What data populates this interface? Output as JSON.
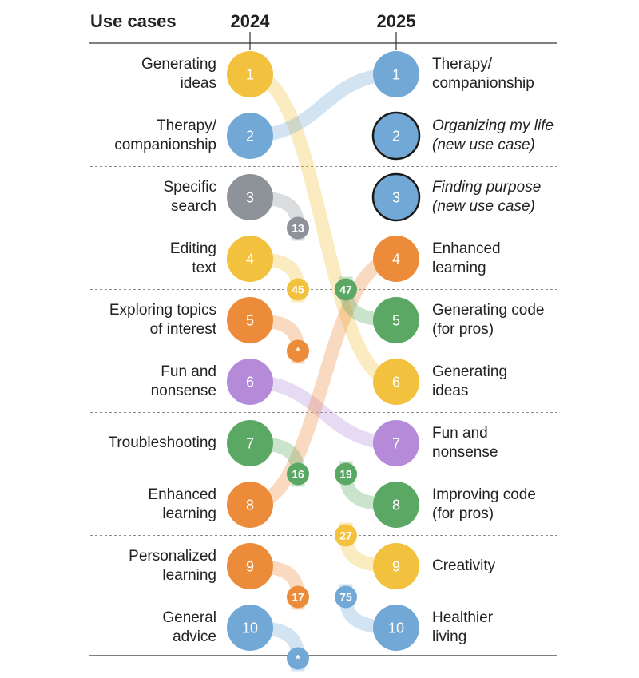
{
  "header": {
    "use_cases_label": "Use cases",
    "year_left": "2024",
    "year_right": "2025"
  },
  "colors": {
    "yellow": "#f2c13e",
    "blue": "#72a8d5",
    "gray": "#8e9399",
    "orange": "#ec8c3a",
    "green": "#5aa864",
    "purple": "#b58bd9"
  },
  "left": [
    {
      "rank": "1",
      "lines": [
        "Generating",
        "ideas"
      ],
      "color": "yellow"
    },
    {
      "rank": "2",
      "lines": [
        "Therapy/",
        "companionship"
      ],
      "color": "blue"
    },
    {
      "rank": "3",
      "lines": [
        "Specific",
        "search"
      ],
      "color": "gray"
    },
    {
      "rank": "4",
      "lines": [
        "Editing",
        "text"
      ],
      "color": "yellow"
    },
    {
      "rank": "5",
      "lines": [
        "Exploring topics",
        "of interest"
      ],
      "color": "orange"
    },
    {
      "rank": "6",
      "lines": [
        "Fun and",
        "nonsense"
      ],
      "color": "purple"
    },
    {
      "rank": "7",
      "lines": [
        "Troubleshooting"
      ],
      "color": "green"
    },
    {
      "rank": "8",
      "lines": [
        "Enhanced",
        "learning"
      ],
      "color": "orange"
    },
    {
      "rank": "9",
      "lines": [
        "Personalized",
        "learning"
      ],
      "color": "orange"
    },
    {
      "rank": "10",
      "lines": [
        "General",
        "advice"
      ],
      "color": "blue"
    }
  ],
  "right": [
    {
      "rank": "1",
      "lines": [
        "Therapy/",
        "companionship"
      ],
      "color": "blue",
      "new": false
    },
    {
      "rank": "2",
      "lines": [
        "Organizing my life",
        "(new use case)"
      ],
      "color": "blue",
      "new": true
    },
    {
      "rank": "3",
      "lines": [
        "Finding purpose",
        "(new use case)"
      ],
      "color": "blue",
      "new": true
    },
    {
      "rank": "4",
      "lines": [
        "Enhanced",
        "learning"
      ],
      "color": "orange",
      "new": false
    },
    {
      "rank": "5",
      "lines": [
        "Generating code",
        "(for pros)"
      ],
      "color": "green",
      "new": false
    },
    {
      "rank": "6",
      "lines": [
        "Generating",
        "ideas"
      ],
      "color": "yellow",
      "new": false
    },
    {
      "rank": "7",
      "lines": [
        "Fun and",
        "nonsense"
      ],
      "color": "purple",
      "new": false
    },
    {
      "rank": "8",
      "lines": [
        "Improving code",
        "(for pros)"
      ],
      "color": "green",
      "new": false
    },
    {
      "rank": "9",
      "lines": [
        "Creativity"
      ],
      "color": "yellow",
      "new": false
    },
    {
      "rank": "10",
      "lines": [
        "Healthier",
        "living"
      ],
      "color": "blue",
      "new": false
    }
  ],
  "moves": [
    {
      "from": 1,
      "to": 6,
      "color": "yellow"
    },
    {
      "from": 2,
      "to": 1,
      "color": "blue"
    },
    {
      "from": 6,
      "to": 7,
      "color": "purple"
    },
    {
      "from": 8,
      "to": 4,
      "color": "orange"
    }
  ],
  "drops": [
    {
      "from": 3,
      "badge": "13",
      "color": "gray"
    },
    {
      "from": 4,
      "badge": "45",
      "color": "yellow"
    },
    {
      "from": 5,
      "badge": "*",
      "color": "orange"
    },
    {
      "from": 7,
      "badge": "16",
      "color": "green"
    },
    {
      "from": 9,
      "badge": "17",
      "color": "orange"
    },
    {
      "from": 10,
      "badge": "*",
      "color": "blue"
    }
  ],
  "rises": [
    {
      "to": 5,
      "badge": "47",
      "color": "green"
    },
    {
      "to": 8,
      "badge": "19",
      "color": "green"
    },
    {
      "to": 9,
      "badge": "27",
      "color": "yellow"
    },
    {
      "to": 10,
      "badge": "75",
      "color": "blue"
    }
  ]
}
